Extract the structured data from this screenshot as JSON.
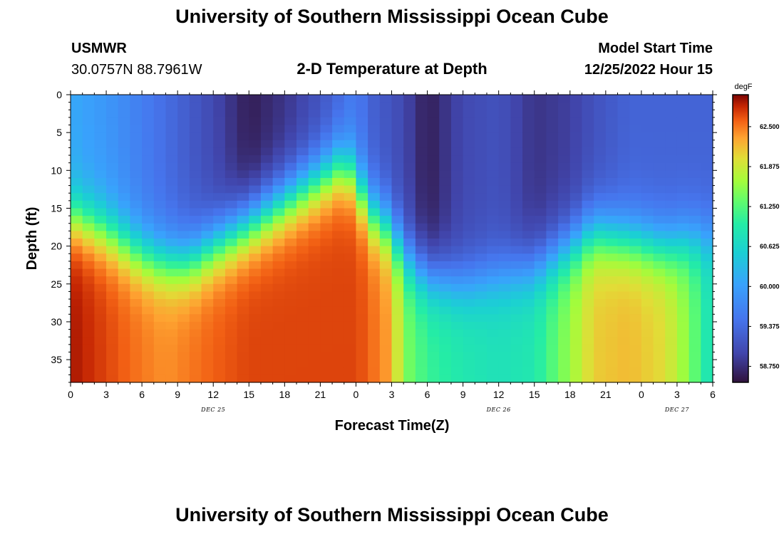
{
  "header": {
    "title": "University of Southern Mississippi Ocean Cube",
    "station_name": "USMWR",
    "station_coords": "30.0757N  88.7961W",
    "plot_title": "2-D Temperature at Depth",
    "model_start_label": "Model Start Time",
    "model_start_value": "12/25/2022 Hour 15"
  },
  "footer": {
    "title": "University of Southern Mississippi Ocean Cube"
  },
  "chart_data": {
    "type": "heatmap",
    "title": "2-D Temperature at Depth",
    "xlabel": "Forecast Time(Z)",
    "ylabel": "Depth (ft)",
    "x_tick_labels": [
      "0",
      "3",
      "6",
      "9",
      "12",
      "15",
      "18",
      "21",
      "0",
      "3",
      "6",
      "9",
      "12",
      "15",
      "18",
      "21",
      "0",
      "3",
      "6"
    ],
    "x_tick_hours": [
      0,
      3,
      6,
      9,
      12,
      15,
      18,
      21,
      24,
      27,
      30,
      33,
      36,
      39,
      42,
      45,
      48,
      51,
      54
    ],
    "x_day_labels": [
      {
        "label": "DEC 25",
        "hour": 12
      },
      {
        "label": "DEC 26",
        "hour": 36
      },
      {
        "label": "DEC 27",
        "hour": 51
      }
    ],
    "xlim": [
      0,
      54
    ],
    "y_tick_labels": [
      "0",
      "5",
      "10",
      "15",
      "20",
      "25",
      "30",
      "35"
    ],
    "y_tick_values": [
      0,
      5,
      10,
      15,
      20,
      25,
      30,
      35
    ],
    "ylim": [
      0,
      38
    ],
    "y_inverted": true,
    "colorbar": {
      "unit": "degF",
      "tick_labels": [
        "62.500",
        "61.875",
        "61.250",
        "60.625",
        "60.000",
        "59.375",
        "58.750"
      ],
      "tick_values": [
        62.5,
        61.875,
        61.25,
        60.625,
        60.0,
        59.375,
        58.75
      ],
      "range": [
        58.5,
        63.0
      ]
    },
    "cell_hours": 1,
    "cell_depth_ft": 1,
    "columns": [
      {
        "hour": 0,
        "top": 60.1,
        "thermo": 16,
        "bottom": 62.9
      },
      {
        "hour": 3,
        "top": 59.9,
        "thermo": 18,
        "bottom": 62.7
      },
      {
        "hour": 6,
        "top": 59.6,
        "thermo": 21,
        "bottom": 62.5
      },
      {
        "hour": 8,
        "top": 59.4,
        "thermo": 22,
        "bottom": 62.4
      },
      {
        "hour": 10,
        "top": 59.2,
        "thermo": 22,
        "bottom": 62.5
      },
      {
        "hour": 12,
        "top": 59.0,
        "thermo": 20,
        "bottom": 62.6
      },
      {
        "hour": 15,
        "top": 58.6,
        "thermo": 17,
        "bottom": 62.7
      },
      {
        "hour": 18,
        "top": 58.8,
        "thermo": 14,
        "bottom": 62.7
      },
      {
        "hour": 21,
        "top": 59.1,
        "thermo": 11,
        "bottom": 62.7
      },
      {
        "hour": 23,
        "top": 59.4,
        "thermo": 9,
        "bottom": 62.7
      },
      {
        "hour": 24,
        "top": 59.6,
        "thermo": 11,
        "bottom": 62.7
      },
      {
        "hour": 25,
        "top": 59.3,
        "thermo": 15,
        "bottom": 62.6
      },
      {
        "hour": 27,
        "top": 59.1,
        "thermo": 18,
        "bottom": 62.3
      },
      {
        "hour": 28,
        "top": 59.0,
        "thermo": 21,
        "bottom": 61.5
      },
      {
        "hour": 30,
        "top": 58.6,
        "thermo": 24,
        "bottom": 61.1
      },
      {
        "hour": 33,
        "top": 59.0,
        "thermo": 25,
        "bottom": 60.9
      },
      {
        "hour": 36,
        "top": 59.1,
        "thermo": 24,
        "bottom": 60.8
      },
      {
        "hour": 39,
        "top": 58.8,
        "thermo": 23,
        "bottom": 60.9
      },
      {
        "hour": 42,
        "top": 58.9,
        "thermo": 20,
        "bottom": 61.6
      },
      {
        "hour": 44,
        "top": 59.1,
        "thermo": 18,
        "bottom": 62.1
      },
      {
        "hour": 47,
        "top": 59.3,
        "thermo": 19,
        "bottom": 62.2
      },
      {
        "hour": 50,
        "top": 59.3,
        "thermo": 20,
        "bottom": 62.0
      },
      {
        "hour": 52,
        "top": 59.3,
        "thermo": 19,
        "bottom": 61.5
      },
      {
        "hour": 54,
        "top": 59.3,
        "thermo": 19,
        "bottom": 60.7
      }
    ]
  }
}
